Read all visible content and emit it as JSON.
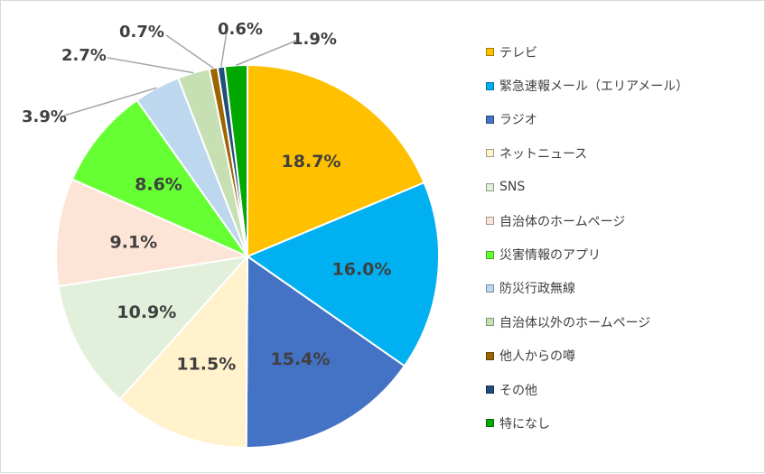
{
  "chart_data": {
    "type": "pie",
    "title": "",
    "start_angle_deg": 0,
    "direction": "clockwise",
    "legend_position": "right",
    "slices": [
      {
        "label": "テレビ",
        "value": 18.7,
        "display": "18.7%",
        "color": "#ffc000",
        "label_placement": "inside"
      },
      {
        "label": "緊急速報メール（エリアメール）",
        "value": 16.0,
        "display": "16.0%",
        "color": "#00b0f0",
        "label_placement": "inside"
      },
      {
        "label": "ラジオ",
        "value": 15.4,
        "display": "15.4%",
        "color": "#4472c4",
        "label_placement": "inside"
      },
      {
        "label": "ネットニュース",
        "value": 11.5,
        "display": "11.5%",
        "color": "#fff2cc",
        "label_placement": "inside"
      },
      {
        "label": "SNS",
        "value": 10.9,
        "display": "10.9%",
        "color": "#e2efda",
        "label_placement": "inside"
      },
      {
        "label": "自治体のホームページ",
        "value": 9.1,
        "display": "9.1%",
        "color": "#fce4d6",
        "label_placement": "inside"
      },
      {
        "label": "災害情報のアプリ",
        "value": 8.6,
        "display": "8.6%",
        "color": "#66ff33",
        "label_placement": "inside"
      },
      {
        "label": "防災行政無線",
        "value": 3.9,
        "display": "3.9%",
        "color": "#bdd7ee",
        "label_placement": "outside"
      },
      {
        "label": "自治体以外のホームページ",
        "value": 2.7,
        "display": "2.7%",
        "color": "#c6e0b4",
        "label_placement": "outside"
      },
      {
        "label": "他人からの噂",
        "value": 0.7,
        "display": "0.7%",
        "color": "#9c6500",
        "label_placement": "outside"
      },
      {
        "label": "その他",
        "value": 0.6,
        "display": "0.6%",
        "color": "#1f4e78",
        "label_placement": "outside"
      },
      {
        "label": "特になし",
        "value": 1.9,
        "display": "1.9%",
        "color": "#00a800",
        "label_placement": "outside"
      }
    ]
  }
}
